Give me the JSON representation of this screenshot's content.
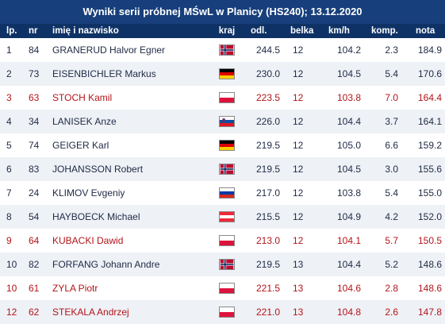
{
  "title": "Wyniki serii próbnej MŚwL w Planicy (HS240); 13.12.2020",
  "headers": {
    "lp": "lp.",
    "nr": "nr",
    "name": "imię i nazwisko",
    "kraj": "kraj",
    "odl": "odl.",
    "belka": "belka",
    "kmh": "km/h",
    "komp": "komp.",
    "nota": "nota"
  },
  "colors": {
    "header_bg": "#173f7b",
    "subheader_bg": "#0f3266",
    "polish_row_text": "#b3141a",
    "stripe_bg": "#eef1f6"
  },
  "rows": [
    {
      "lp": "1",
      "nr": "84",
      "name": "GRANERUD Halvor Egner",
      "flag": "norway-flag-icon",
      "odl": "244.5",
      "belka": "12",
      "kmh": "104.2",
      "komp": "2.3",
      "nota": "184.9",
      "highlight": false
    },
    {
      "lp": "2",
      "nr": "73",
      "name": "EISENBICHLER Markus",
      "flag": "germany-flag-icon",
      "odl": "230.0",
      "belka": "12",
      "kmh": "104.5",
      "komp": "5.4",
      "nota": "170.6",
      "highlight": false
    },
    {
      "lp": "3",
      "nr": "63",
      "name": "STOCH Kamil",
      "flag": "poland-flag-icon",
      "odl": "223.5",
      "belka": "12",
      "kmh": "103.8",
      "komp": "7.0",
      "nota": "164.4",
      "highlight": true
    },
    {
      "lp": "4",
      "nr": "34",
      "name": "LANISEK Anze",
      "flag": "slovenia-flag-icon",
      "odl": "226.0",
      "belka": "12",
      "kmh": "104.4",
      "komp": "3.7",
      "nota": "164.1",
      "highlight": false
    },
    {
      "lp": "5",
      "nr": "74",
      "name": "GEIGER Karl",
      "flag": "germany-flag-icon",
      "odl": "219.5",
      "belka": "12",
      "kmh": "105.0",
      "komp": "6.6",
      "nota": "159.2",
      "highlight": false
    },
    {
      "lp": "6",
      "nr": "83",
      "name": "JOHANSSON Robert",
      "flag": "norway-flag-icon",
      "odl": "219.5",
      "belka": "12",
      "kmh": "104.5",
      "komp": "3.0",
      "nota": "155.6",
      "highlight": false
    },
    {
      "lp": "7",
      "nr": "24",
      "name": "KLIMOV Evgeniy",
      "flag": "russia-flag-icon",
      "odl": "217.0",
      "belka": "12",
      "kmh": "103.8",
      "komp": "5.4",
      "nota": "155.0",
      "highlight": false
    },
    {
      "lp": "8",
      "nr": "54",
      "name": "HAYBOECK Michael",
      "flag": "austria-flag-icon",
      "odl": "215.5",
      "belka": "12",
      "kmh": "104.9",
      "komp": "4.2",
      "nota": "152.0",
      "highlight": false
    },
    {
      "lp": "9",
      "nr": "64",
      "name": "KUBACKI Dawid",
      "flag": "poland-flag-icon",
      "odl": "213.0",
      "belka": "12",
      "kmh": "104.1",
      "komp": "5.7",
      "nota": "150.5",
      "highlight": true
    },
    {
      "lp": "10",
      "nr": "82",
      "name": "FORFANG Johann Andre",
      "flag": "norway-flag-icon",
      "odl": "219.5",
      "belka": "13",
      "kmh": "104.4",
      "komp": "5.2",
      "nota": "148.6",
      "highlight": false
    },
    {
      "lp": "10",
      "nr": "61",
      "name": "ZYLA Piotr",
      "flag": "poland-flag-icon",
      "odl": "221.5",
      "belka": "13",
      "kmh": "104.6",
      "komp": "2.8",
      "nota": "148.6",
      "highlight": true
    },
    {
      "lp": "12",
      "nr": "62",
      "name": "STEKALA Andrzej",
      "flag": "poland-flag-icon",
      "odl": "221.0",
      "belka": "13",
      "kmh": "104.8",
      "komp": "2.6",
      "nota": "147.8",
      "highlight": true
    }
  ]
}
